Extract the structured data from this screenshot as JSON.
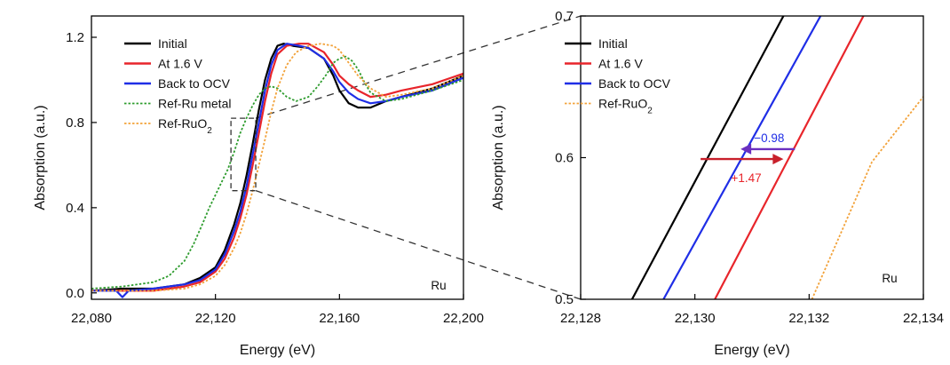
{
  "chart_data": [
    {
      "type": "line",
      "panel": "left",
      "xlabel": "Energy (eV)",
      "ylabel": "Absorption (a.u.)",
      "xlim": [
        22080,
        22200
      ],
      "ylim": [
        -0.03,
        1.3
      ],
      "xticks": [
        22080,
        22120,
        22160,
        22200
      ],
      "xtick_labels": [
        "22,080",
        "22,120",
        "22,160",
        "22,200"
      ],
      "yticks": [
        0.0,
        0.4,
        0.8,
        1.2
      ],
      "ytick_labels": [
        "0.0",
        "0.4",
        "0.8",
        "1.2"
      ],
      "annotation": "Ru",
      "legend_position": "top-left",
      "zoom_box": {
        "x": [
          22125,
          22133
        ],
        "y": [
          0.48,
          0.82
        ]
      },
      "series": [
        {
          "name": "Initial",
          "color": "#000000",
          "style": "solid",
          "x": [
            22080,
            22090,
            22100,
            22110,
            22115,
            22120,
            22123,
            22126,
            22128,
            22130,
            22132,
            22134,
            22136,
            22138,
            22140,
            22142,
            22145,
            22150,
            22155,
            22158,
            22160,
            22163,
            22166,
            22170,
            22175,
            22180,
            22190,
            22200
          ],
          "y": [
            0.01,
            0.02,
            0.02,
            0.04,
            0.07,
            0.12,
            0.2,
            0.32,
            0.42,
            0.55,
            0.7,
            0.86,
            1.0,
            1.1,
            1.16,
            1.17,
            1.16,
            1.15,
            1.1,
            1.02,
            0.95,
            0.89,
            0.87,
            0.87,
            0.9,
            0.92,
            0.96,
            1.02
          ]
        },
        {
          "name": "At 1.6 V",
          "color": "#e8252b",
          "style": "solid",
          "x": [
            22080,
            22090,
            22100,
            22110,
            22115,
            22120,
            22123,
            22126,
            22128,
            22130,
            22132,
            22134,
            22136,
            22138,
            22140,
            22143,
            22147,
            22150,
            22155,
            22158,
            22160,
            22163,
            22166,
            22170,
            22175,
            22180,
            22190,
            22200
          ],
          "y": [
            0.01,
            0.01,
            0.01,
            0.03,
            0.05,
            0.1,
            0.16,
            0.26,
            0.35,
            0.46,
            0.6,
            0.75,
            0.9,
            1.03,
            1.12,
            1.16,
            1.17,
            1.17,
            1.13,
            1.07,
            1.02,
            0.98,
            0.95,
            0.92,
            0.93,
            0.95,
            0.98,
            1.03
          ]
        },
        {
          "name": "Back to OCV",
          "color": "#1f2ee6",
          "style": "solid",
          "x": [
            22080,
            22088,
            22090,
            22092,
            22100,
            22110,
            22115,
            22120,
            22123,
            22126,
            22128,
            22130,
            22132,
            22134,
            22136,
            22138,
            22140,
            22143,
            22147,
            22150,
            22155,
            22158,
            22160,
            22163,
            22166,
            22170,
            22175,
            22180,
            22190,
            22200
          ],
          "y": [
            0.01,
            0.01,
            -0.02,
            0.01,
            0.02,
            0.04,
            0.06,
            0.11,
            0.18,
            0.29,
            0.38,
            0.5,
            0.65,
            0.8,
            0.95,
            1.07,
            1.14,
            1.17,
            1.16,
            1.15,
            1.1,
            1.04,
            0.99,
            0.94,
            0.91,
            0.89,
            0.9,
            0.92,
            0.95,
            1.01
          ]
        },
        {
          "name": "Ref-Ru metal",
          "color": "#2e9c2e",
          "style": "dotted",
          "x": [
            22080,
            22090,
            22100,
            22105,
            22110,
            22113,
            22116,
            22118,
            22120,
            22122,
            22124,
            22126,
            22128,
            22130,
            22132,
            22134,
            22136,
            22138,
            22140,
            22143,
            22146,
            22150,
            22153,
            22156,
            22158,
            22160,
            22162,
            22164,
            22166,
            22168,
            22170,
            22175,
            22180,
            22190,
            22200
          ],
          "y": [
            0.02,
            0.03,
            0.05,
            0.08,
            0.15,
            0.23,
            0.33,
            0.4,
            0.46,
            0.52,
            0.58,
            0.66,
            0.75,
            0.82,
            0.88,
            0.93,
            0.96,
            0.97,
            0.96,
            0.92,
            0.9,
            0.92,
            0.97,
            1.03,
            1.08,
            1.1,
            1.11,
            1.09,
            1.05,
            0.99,
            0.94,
            0.9,
            0.91,
            0.95,
            1.0
          ]
        },
        {
          "name": "Ref-RuO",
          "sub": "2",
          "color": "#f2a23a",
          "style": "dotted",
          "x": [
            22080,
            22090,
            22100,
            22110,
            22115,
            22120,
            22123,
            22126,
            22128,
            22130,
            22132,
            22134,
            22136,
            22138,
            22140,
            22143,
            22146,
            22150,
            22154,
            22158,
            22160,
            22163,
            22166,
            22170,
            22175,
            22180,
            22190,
            22200
          ],
          "y": [
            0.01,
            0.01,
            0.01,
            0.02,
            0.04,
            0.08,
            0.13,
            0.21,
            0.28,
            0.37,
            0.48,
            0.6,
            0.72,
            0.85,
            0.96,
            1.07,
            1.13,
            1.16,
            1.17,
            1.16,
            1.14,
            1.08,
            1.02,
            0.96,
            0.92,
            0.93,
            0.96,
            1.02
          ]
        }
      ]
    },
    {
      "type": "line",
      "panel": "right",
      "xlabel": "Energy (eV)",
      "ylabel": "Absorption (a.u.)",
      "xlim": [
        22128,
        22134
      ],
      "ylim": [
        0.5,
        0.7
      ],
      "xticks": [
        22128,
        22130,
        22132,
        22134
      ],
      "xtick_labels": [
        "22,128",
        "22,130",
        "22,132",
        "22,134"
      ],
      "yticks": [
        0.5,
        0.6,
        0.7
      ],
      "ytick_labels": [
        "0.5",
        "0.6",
        "0.7"
      ],
      "annotation": "Ru",
      "legend_position": "top-left",
      "series": [
        {
          "name": "Initial",
          "color": "#000000",
          "style": "solid",
          "x": [
            22128.9,
            22131.55
          ],
          "y": [
            0.5,
            0.7
          ]
        },
        {
          "name": "At 1.6 V",
          "color": "#e8252b",
          "style": "solid",
          "x": [
            22130.35,
            22132.95
          ],
          "y": [
            0.5,
            0.7
          ]
        },
        {
          "name": "Back to OCV",
          "color": "#1f2ee6",
          "style": "solid",
          "x": [
            22129.45,
            22132.2
          ],
          "y": [
            0.5,
            0.7
          ]
        },
        {
          "name": "Ref-RuO",
          "sub": "2",
          "color": "#f2a23a",
          "style": "dotted",
          "x": [
            22132.05,
            22133.1,
            22134.0
          ],
          "y": [
            0.5,
            0.597,
            0.643
          ]
        }
      ],
      "arrows": [
        {
          "label": "−0.98",
          "color": "#6a2fc0",
          "label_color": "#1f2ee6",
          "from": [
            22131.75,
            0.606
          ],
          "to": [
            22130.8,
            0.606
          ],
          "label_pos": [
            22131.3,
            0.614
          ]
        },
        {
          "label": "+1.47",
          "color": "#c8202b",
          "label_color": "#e8252b",
          "from": [
            22130.1,
            0.599
          ],
          "to": [
            22131.55,
            0.599
          ],
          "label_pos": [
            22130.9,
            0.586
          ]
        }
      ]
    }
  ]
}
